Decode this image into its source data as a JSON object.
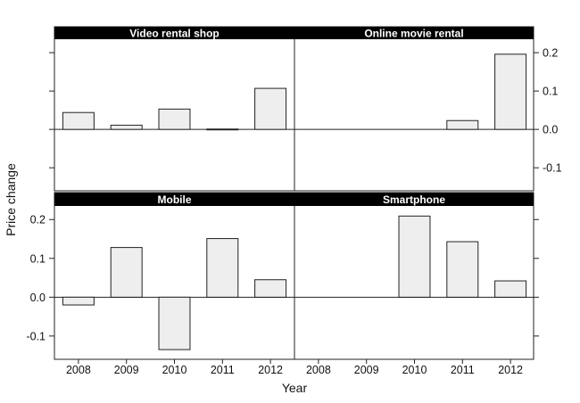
{
  "chart_data": {
    "type": "bar",
    "layout": "facet-grid 2x2",
    "xlabel": "Year",
    "ylabel": "Price change",
    "categories": [
      "2008",
      "2009",
      "2010",
      "2011",
      "2012"
    ],
    "ylim": [
      -0.16,
      0.235
    ],
    "yticks": [
      -0.1,
      0.0,
      0.1,
      0.2
    ],
    "ytick_labels": [
      "-0.1",
      "0.0",
      "0.1",
      "0.2"
    ],
    "bar_fill": "#eeeeee",
    "bar_stroke": "#222222",
    "strip_color": "#000000",
    "panels": [
      {
        "title": "Video rental shop",
        "row": 0,
        "col": 0,
        "values": [
          0.044,
          0.011,
          0.053,
          0.001,
          0.107
        ]
      },
      {
        "title": "Online movie rental",
        "row": 0,
        "col": 1,
        "values": [
          null,
          null,
          null,
          0.023,
          0.196
        ]
      },
      {
        "title": "Mobile",
        "row": 1,
        "col": 0,
        "values": [
          -0.02,
          0.128,
          -0.135,
          0.151,
          0.045
        ]
      },
      {
        "title": "Smartphone",
        "row": 1,
        "col": 1,
        "values": [
          null,
          null,
          0.209,
          0.143,
          0.042
        ]
      }
    ]
  }
}
